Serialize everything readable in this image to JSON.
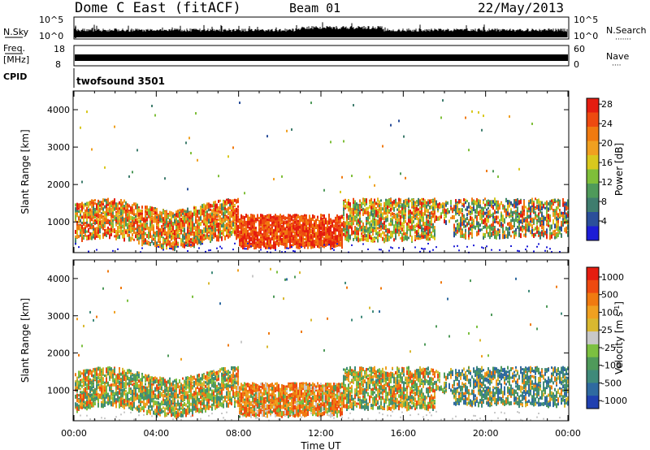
{
  "header": {
    "station": "Dome C East (fitACF)",
    "beam": "Beam 01",
    "date": "22/May/2013"
  },
  "colors": {
    "axis": "#000000",
    "background": "#ffffff",
    "power_scale": [
      "#1c1cd6",
      "#2b4f9a",
      "#3f7d6e",
      "#4f9a5a",
      "#7fbf3a",
      "#d9c81e",
      "#f0a020",
      "#f07a10",
      "#ee4a10",
      "#e51d10"
    ],
    "velocity_scale": [
      "#2040b0",
      "#2f6aa0",
      "#3f8a7a",
      "#4f9a5a",
      "#7cc040",
      "#c8c8c8",
      "#d9b830",
      "#f0a020",
      "#f07a10",
      "#ee4a10",
      "#e51d10"
    ]
  },
  "panels": {
    "nsky": {
      "label": "N.Sky",
      "right_label": "N.Search",
      "right_dots": "·······",
      "tick_top": "10^5",
      "tick_bottom": "10^0"
    },
    "freq": {
      "label_top": "Freq.",
      "label_bottom": "[MHz]",
      "right_label": "Nave",
      "right_dots": "····",
      "tick_top_left": "18",
      "tick_bottom_left": "8",
      "tick_top_right": "60",
      "tick_bottom_right": "0"
    },
    "cpid": {
      "label": "CPID",
      "value": "twofsound 3501"
    }
  },
  "chart_data": [
    {
      "type": "heatmap",
      "quantity": "power",
      "ylabel": "Slant Range [km]",
      "yticks": [
        1000,
        2000,
        3000,
        4000
      ],
      "ylim": [
        180,
        4500
      ],
      "xlim": [
        0,
        24
      ],
      "colorbar": {
        "label": "Power [dB]",
        "ticks": [
          "4",
          "8",
          "12",
          "16",
          "20",
          "24",
          "28"
        ]
      }
    },
    {
      "type": "heatmap",
      "quantity": "velocity",
      "ylabel": "Slant Range [km]",
      "yticks": [
        1000,
        2000,
        3000,
        4000
      ],
      "ylim": [
        180,
        4500
      ],
      "xlim": [
        0,
        24
      ],
      "xlabel": "Time UT",
      "xticks": [
        "00:00",
        "04:00",
        "08:00",
        "12:00",
        "16:00",
        "20:00",
        "00:00"
      ],
      "colorbar": {
        "label": "Velocity [m s",
        "label_superscript": "-1",
        "label_close": "]",
        "ticks": [
          "1000",
          "500",
          "100",
          "25",
          "-25",
          "-100",
          "-500",
          "-1000"
        ]
      }
    }
  ]
}
